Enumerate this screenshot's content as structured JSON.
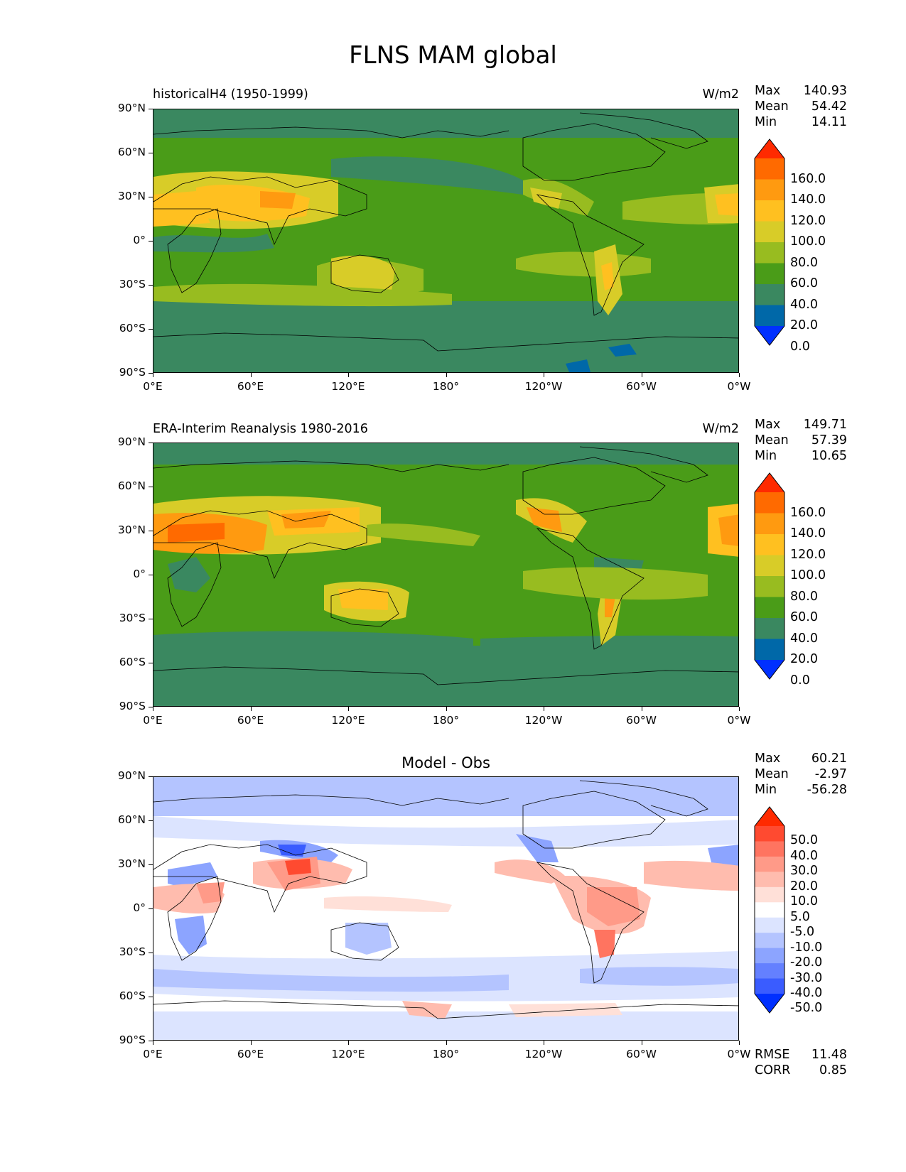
{
  "title": "FLNS MAM global",
  "axes": {
    "y_ticks": [
      "90°N",
      "60°N",
      "30°N",
      "0°",
      "30°S",
      "60°S",
      "90°S"
    ],
    "x_ticks": [
      "0°E",
      "60°E",
      "120°E",
      "180°",
      "120°W",
      "60°W",
      "0°W"
    ]
  },
  "panels": [
    {
      "id": "model",
      "title_left": "historicalH4 (1950-1999)",
      "units": "W/m2",
      "stats": {
        "max_label": "Max",
        "max": "140.93",
        "mean_label": "Mean",
        "mean": "54.42",
        "min_label": "Min",
        "min": "14.11"
      },
      "colorbar": {
        "labels": [
          "160.0",
          "140.0",
          "120.0",
          "100.0",
          "80.0",
          "60.0",
          "40.0",
          "20.0",
          "0.0"
        ],
        "colors": [
          "#ff2a00",
          "#ff6a00",
          "#ff9a10",
          "#ffc020",
          "#d8cc28",
          "#98bc20",
          "#4a9c18",
          "#3a8860",
          "#0068a8",
          "#0030ff"
        ]
      }
    },
    {
      "id": "obs",
      "title_left": "ERA-Interim Reanalysis 1980-2016",
      "units": "W/m2",
      "stats": {
        "max_label": "Max",
        "max": "149.71",
        "mean_label": "Mean",
        "mean": "57.39",
        "min_label": "Min",
        "min": "10.65"
      },
      "colorbar": {
        "labels": [
          "160.0",
          "140.0",
          "120.0",
          "100.0",
          "80.0",
          "60.0",
          "40.0",
          "20.0",
          "0.0"
        ],
        "colors": [
          "#ff2a00",
          "#ff6a00",
          "#ff9a10",
          "#ffc020",
          "#d8cc28",
          "#98bc20",
          "#4a9c18",
          "#3a8860",
          "#0068a8",
          "#0030ff"
        ]
      }
    },
    {
      "id": "diff",
      "title_center": "Model - Obs",
      "stats": {
        "max_label": "Max",
        "max": "60.21",
        "mean_label": "Mean",
        "mean": "-2.97",
        "min_label": "Min",
        "min": "-56.28"
      },
      "colorbar": {
        "labels": [
          "50.0",
          "40.0",
          "30.0",
          "20.0",
          "10.0",
          "5.0",
          "-5.0",
          "-10.0",
          "-20.0",
          "-30.0",
          "-40.0",
          "-50.0"
        ],
        "colors": [
          "#ff2a00",
          "#ff4a30",
          "#ff7460",
          "#ff9a88",
          "#ffbcae",
          "#ffe0d8",
          "#ffffff",
          "#dce4ff",
          "#b4c4ff",
          "#8ca4ff",
          "#6480ff",
          "#3a5cff",
          "#0030ff"
        ]
      },
      "metrics": {
        "rmse_label": "RMSE",
        "rmse": "11.48",
        "corr_label": "CORR",
        "corr": "0.85"
      }
    }
  ]
}
